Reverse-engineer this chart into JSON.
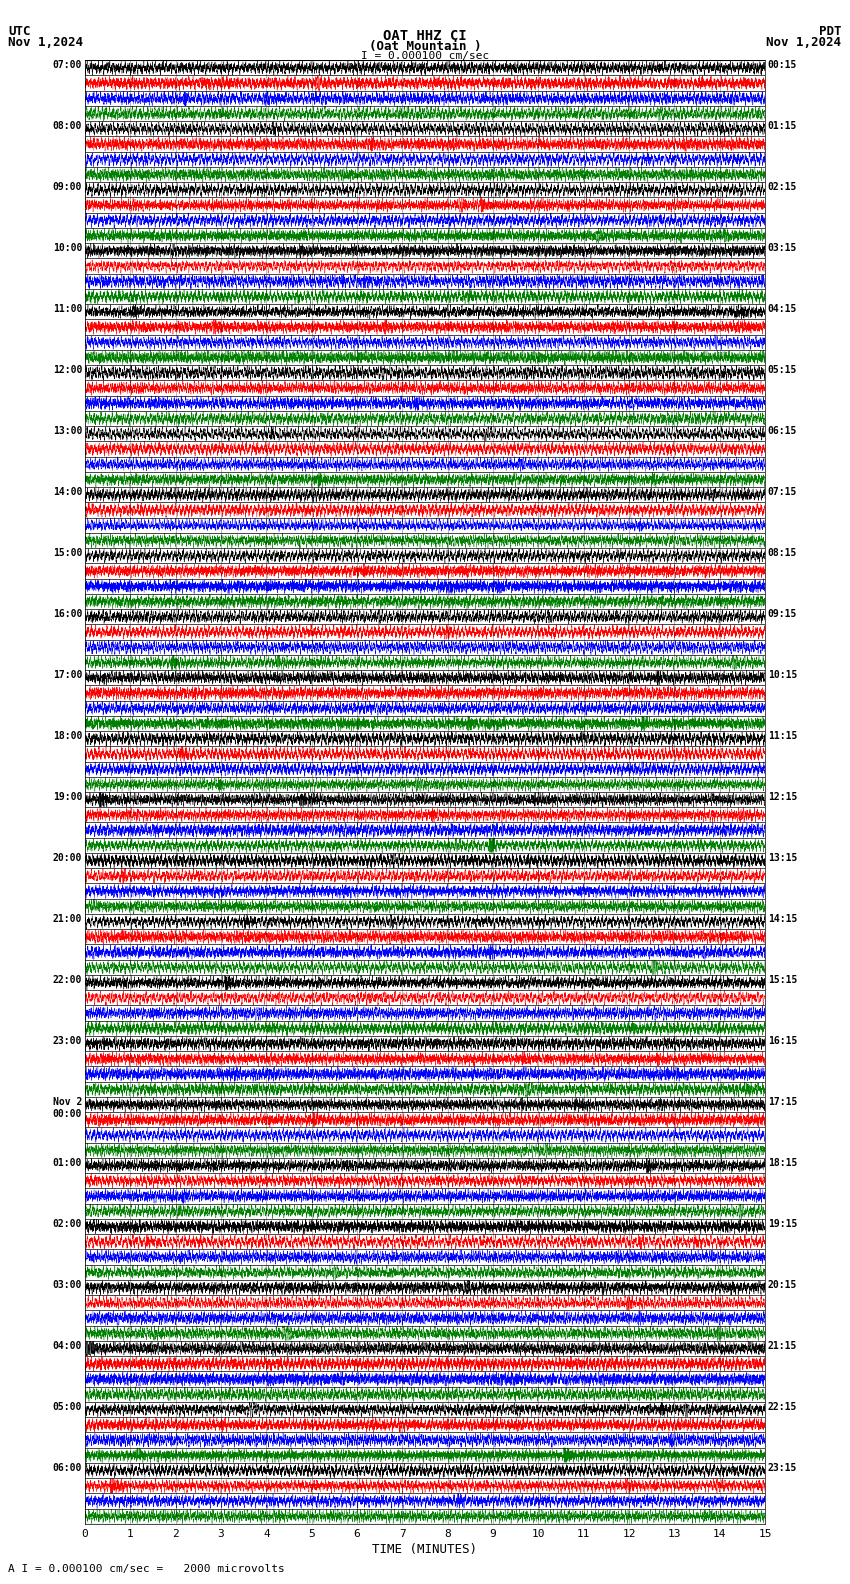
{
  "title_line1": "OAT HHZ CI",
  "title_line2": "(Oat Mountain )",
  "scale_label": "I = 0.000100 cm/sec",
  "utc_label": "UTC",
  "pdt_label": "PDT",
  "date_left": "Nov 1,2024",
  "date_right": "Nov 1,2024",
  "footer_label": "A I = 0.000100 cm/sec =   2000 microvolts",
  "xlabel": "TIME (MINUTES)",
  "xticks": [
    0,
    1,
    2,
    3,
    4,
    5,
    6,
    7,
    8,
    9,
    10,
    11,
    12,
    13,
    14,
    15
  ],
  "left_times": [
    "07:00",
    "08:00",
    "09:00",
    "10:00",
    "11:00",
    "12:00",
    "13:00",
    "14:00",
    "15:00",
    "16:00",
    "17:00",
    "18:00",
    "19:00",
    "20:00",
    "21:00",
    "22:00",
    "23:00",
    "Nov 2\n00:00",
    "01:00",
    "02:00",
    "03:00",
    "04:00",
    "05:00",
    "06:00"
  ],
  "right_times": [
    "00:15",
    "01:15",
    "02:15",
    "03:15",
    "04:15",
    "05:15",
    "06:15",
    "07:15",
    "08:15",
    "09:15",
    "10:15",
    "11:15",
    "12:15",
    "13:15",
    "14:15",
    "15:15",
    "16:15",
    "17:15",
    "18:15",
    "19:15",
    "20:15",
    "21:15",
    "22:15",
    "23:15"
  ],
  "n_rows": 24,
  "n_traces_per_row": 4,
  "background_color": "#ffffff",
  "trace_colors": [
    "#000000",
    "#ff0000",
    "#0000ff",
    "#008000"
  ],
  "samples_per_row": 8000
}
